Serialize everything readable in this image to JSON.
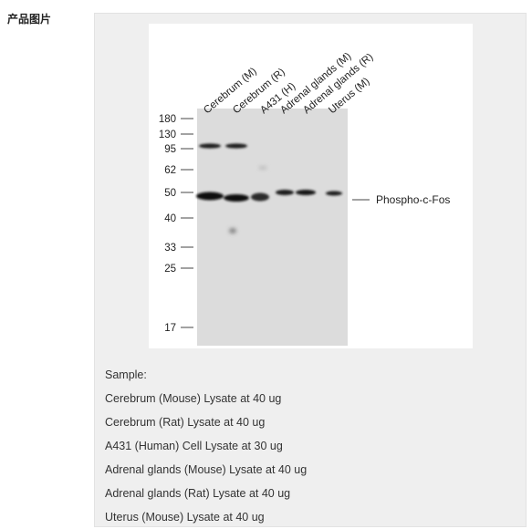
{
  "section": {
    "title": "产品图片"
  },
  "blot": {
    "lanes": [
      "Cerebrum (M)",
      "Cerebrum (R)",
      "A431 (H)",
      "Adrenal glands (M)",
      "Adrenal glands (R)",
      "Uterus (M)"
    ],
    "mw_markers": [
      "180",
      "130",
      "95",
      "62",
      "50",
      "40",
      "33",
      "25",
      "17"
    ],
    "target_label": "Phospho-c-Fos"
  },
  "caption": {
    "lines": [
      "Sample:",
      "Cerebrum (Mouse) Lysate at 40 ug",
      "Cerebrum (Rat) Lysate at 40 ug",
      "A431 (Human) Cell Lysate at 30 ug",
      "Adrenal glands (Mouse) Lysate at 40 ug",
      "Adrenal glands (Rat) Lysate at 40 ug",
      "Uterus (Mouse) Lysate at 40 ug"
    ]
  }
}
